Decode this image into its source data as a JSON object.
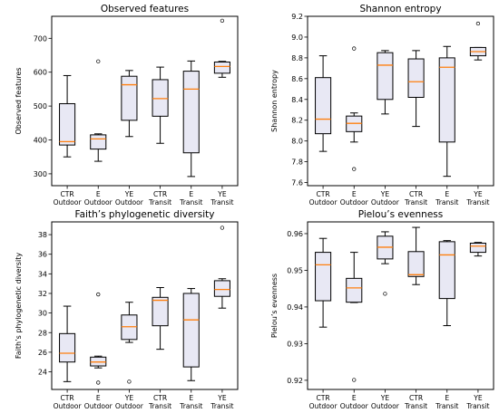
{
  "box_color": "#e8e8f4",
  "median_color": "#ff7f0e",
  "categories": [
    "CTR Outdoor",
    "E Outdoor",
    "YE Outdoor",
    "CTR Transit",
    "E Transit",
    "YE Transit"
  ],
  "category_lines": [
    [
      "CTR",
      "Outdoor"
    ],
    [
      "E",
      "Outdoor"
    ],
    [
      "YE",
      "Outdoor"
    ],
    [
      "CTR",
      "Transit"
    ],
    [
      "E",
      "Transit"
    ],
    [
      "YE",
      "Transit"
    ]
  ],
  "chart_data": [
    {
      "type": "box",
      "title": "Observed features",
      "ylabel": "Observed features",
      "ylim": [
        265,
        765
      ],
      "yticks": [
        300,
        400,
        500,
        600,
        700
      ],
      "boxes": [
        {
          "whislo": 350,
          "q1": 385,
          "med": 395,
          "q3": 507,
          "whishi": 590,
          "fliers": []
        },
        {
          "whislo": 337,
          "q1": 373,
          "med": 403,
          "q3": 415,
          "whishi": 418,
          "fliers": [
            632
          ]
        },
        {
          "whislo": 410,
          "q1": 458,
          "med": 563,
          "q3": 588,
          "whishi": 605,
          "fliers": []
        },
        {
          "whislo": 390,
          "q1": 470,
          "med": 522,
          "q3": 578,
          "whishi": 615,
          "fliers": []
        },
        {
          "whislo": 292,
          "q1": 362,
          "med": 550,
          "q3": 603,
          "whishi": 633,
          "fliers": []
        },
        {
          "whislo": 585,
          "q1": 597,
          "med": 617,
          "q3": 630,
          "whishi": 632,
          "fliers": [
            752
          ]
        }
      ]
    },
    {
      "type": "box",
      "title": "Shannon entropy",
      "ylabel": "Shannon entropy",
      "ylim": [
        7.57,
        9.2
      ],
      "yticks": [
        7.6,
        7.8,
        8.0,
        8.2,
        8.4,
        8.6,
        8.8,
        9.0,
        9.2
      ],
      "boxes": [
        {
          "whislo": 7.9,
          "q1": 8.07,
          "med": 8.21,
          "q3": 8.61,
          "whishi": 8.82,
          "fliers": []
        },
        {
          "whislo": 7.99,
          "q1": 8.09,
          "med": 8.17,
          "q3": 8.24,
          "whishi": 8.27,
          "fliers": [
            8.89,
            7.73
          ]
        },
        {
          "whislo": 8.26,
          "q1": 8.4,
          "med": 8.73,
          "q3": 8.85,
          "whishi": 8.87,
          "fliers": []
        },
        {
          "whislo": 8.14,
          "q1": 8.42,
          "med": 8.57,
          "q3": 8.79,
          "whishi": 8.87,
          "fliers": []
        },
        {
          "whislo": 7.66,
          "q1": 7.99,
          "med": 8.71,
          "q3": 8.8,
          "whishi": 8.91,
          "fliers": []
        },
        {
          "whislo": 8.78,
          "q1": 8.82,
          "med": 8.86,
          "q3": 8.9,
          "whishi": 8.9,
          "fliers": [
            9.13
          ]
        }
      ]
    },
    {
      "type": "box",
      "title": "Faith’s phylogenetic diversity",
      "ylabel": "Faith’s phylogenetic diversity",
      "ylim": [
        22.2,
        39.3
      ],
      "yticks": [
        24,
        26,
        28,
        30,
        32,
        34,
        36,
        38
      ],
      "boxes": [
        {
          "whislo": 23.0,
          "q1": 25.0,
          "med": 25.9,
          "q3": 27.9,
          "whishi": 30.7,
          "fliers": []
        },
        {
          "whislo": 24.4,
          "q1": 24.6,
          "med": 25.0,
          "q3": 25.5,
          "whishi": 25.6,
          "fliers": [
            31.9,
            22.9
          ]
        },
        {
          "whislo": 27.0,
          "q1": 27.3,
          "med": 28.6,
          "q3": 29.8,
          "whishi": 31.1,
          "fliers": [
            23.0
          ]
        },
        {
          "whislo": 26.3,
          "q1": 28.7,
          "med": 31.3,
          "q3": 31.6,
          "whishi": 32.6,
          "fliers": []
        },
        {
          "whislo": 23.1,
          "q1": 24.5,
          "med": 29.3,
          "q3": 32.0,
          "whishi": 32.5,
          "fliers": []
        },
        {
          "whislo": 30.5,
          "q1": 31.7,
          "med": 32.4,
          "q3": 33.3,
          "whishi": 33.5,
          "fliers": [
            38.7
          ]
        }
      ]
    },
    {
      "type": "box",
      "title": "Pielou’s evenness",
      "ylabel": "Pielou’s evenness",
      "ylim": [
        0.9175,
        0.9632
      ],
      "yticks": [
        0.92,
        0.93,
        0.94,
        0.95,
        0.96
      ],
      "boxes": [
        {
          "whislo": 0.9345,
          "q1": 0.9417,
          "med": 0.9515,
          "q3": 0.9549,
          "whishi": 0.9587,
          "fliers": []
        },
        {
          "whislo": 0.9412,
          "q1": 0.9413,
          "med": 0.9452,
          "q3": 0.9478,
          "whishi": 0.9549,
          "fliers": [
            0.9201
          ]
        },
        {
          "whislo": 0.9518,
          "q1": 0.9531,
          "med": 0.9563,
          "q3": 0.9593,
          "whishi": 0.9605,
          "fliers": [
            0.9436
          ]
        },
        {
          "whislo": 0.9461,
          "q1": 0.9483,
          "med": 0.9488,
          "q3": 0.9551,
          "whishi": 0.9617,
          "fliers": []
        },
        {
          "whislo": 0.9349,
          "q1": 0.9423,
          "med": 0.9542,
          "q3": 0.9578,
          "whishi": 0.9581,
          "fliers": []
        },
        {
          "whislo": 0.9539,
          "q1": 0.9549,
          "med": 0.9566,
          "q3": 0.9574,
          "whishi": 0.9576,
          "fliers": []
        }
      ]
    }
  ]
}
